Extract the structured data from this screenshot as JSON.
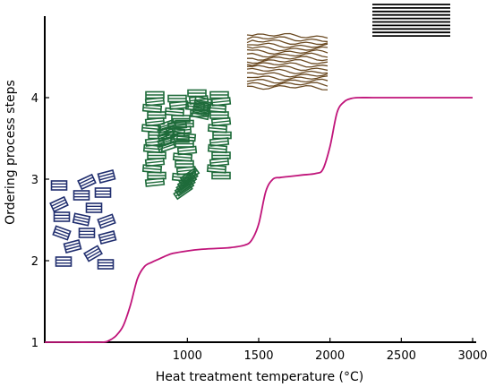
{
  "chart_data": {
    "type": "line",
    "title": "",
    "xlabel": "Heat treatment temperature (°C)",
    "ylabel": "Ordering process steps",
    "xlim": [
      0,
      3000
    ],
    "ylim": [
      1,
      5
    ],
    "x_ticks": [
      1000,
      1500,
      2000,
      2500,
      3000
    ],
    "y_ticks": [
      1,
      2,
      3,
      4
    ],
    "grid": false,
    "legend": "none",
    "series": [
      {
        "color": "#c0147a",
        "x": [
          0,
          200,
          400,
          450,
          500,
          550,
          600,
          650,
          700,
          750,
          800,
          850,
          900,
          1000,
          1100,
          1200,
          1300,
          1400,
          1450,
          1500,
          1550,
          1600,
          1650,
          1700,
          1800,
          1900,
          1950,
          2000,
          2050,
          2100,
          2150,
          2200,
          2300,
          2500,
          2700,
          2800,
          3000
        ],
        "y": [
          1.0,
          1.0,
          1.0,
          1.02,
          1.08,
          1.2,
          1.45,
          1.78,
          1.93,
          1.98,
          2.02,
          2.06,
          2.09,
          2.12,
          2.14,
          2.15,
          2.16,
          2.19,
          2.25,
          2.45,
          2.85,
          3.0,
          3.02,
          3.03,
          3.05,
          3.07,
          3.12,
          3.4,
          3.82,
          3.95,
          3.99,
          4.0,
          4.0,
          4.0,
          4.0,
          4.0,
          4.0
        ]
      }
    ],
    "illustrations": [
      {
        "name": "disordered-stage",
        "color": "#1f2d6e"
      },
      {
        "name": "column-stage",
        "color": "#1e6b3a"
      },
      {
        "name": "wrinkled-layers-stage",
        "color": "#6b4a22"
      },
      {
        "name": "ordered-layers-stage",
        "color": "#000000"
      }
    ]
  }
}
